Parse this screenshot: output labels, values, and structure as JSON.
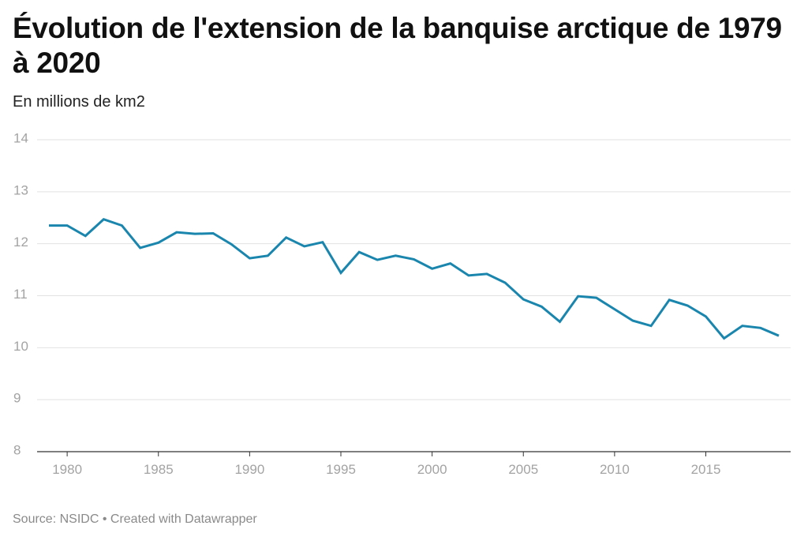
{
  "header": {
    "title": "Évolution de l'extension de la banquise arctique de 1979 à 2020",
    "subtitle": "En millions de km2"
  },
  "footer": {
    "source_label": "Source:",
    "source_name": "NSIDC",
    "separator": "•",
    "credit": "Created with Datawrapper"
  },
  "colors": {
    "line": "#1a86ae",
    "grid": "#e2e2e2",
    "axis": "#333333",
    "tick_text": "#a3a3a3"
  },
  "chart_data": {
    "type": "line",
    "title": "Évolution de l'extension de la banquise arctique de 1979 à 2020",
    "subtitle": "En millions de km2",
    "xlabel": "",
    "ylabel": "",
    "xlim": [
      1979,
      2019
    ],
    "ylim": [
      8,
      14
    ],
    "x_ticks": [
      1980,
      1985,
      1990,
      1995,
      2000,
      2005,
      2010,
      2015
    ],
    "y_ticks": [
      8,
      9,
      10,
      11,
      12,
      13,
      14
    ],
    "grid": true,
    "legend": "none",
    "series": [
      {
        "name": "Extension de la banquise arctique",
        "x": [
          1979,
          1980,
          1981,
          1982,
          1983,
          1984,
          1985,
          1986,
          1987,
          1988,
          1989,
          1990,
          1991,
          1992,
          1993,
          1994,
          1995,
          1996,
          1997,
          1998,
          1999,
          2000,
          2001,
          2002,
          2003,
          2004,
          2005,
          2006,
          2007,
          2008,
          2009,
          2010,
          2011,
          2012,
          2013,
          2014,
          2015,
          2016,
          2017,
          2018,
          2019
        ],
        "values": [
          12.35,
          12.35,
          12.15,
          12.47,
          12.35,
          11.92,
          12.02,
          12.22,
          12.19,
          12.2,
          11.99,
          11.72,
          11.77,
          12.12,
          11.95,
          12.03,
          11.44,
          11.84,
          11.69,
          11.77,
          11.7,
          11.52,
          11.62,
          11.39,
          11.42,
          11.25,
          10.93,
          10.79,
          10.5,
          10.99,
          10.96,
          10.74,
          10.52,
          10.42,
          10.92,
          10.81,
          10.6,
          10.18,
          10.42,
          10.38,
          10.23
        ]
      }
    ]
  }
}
